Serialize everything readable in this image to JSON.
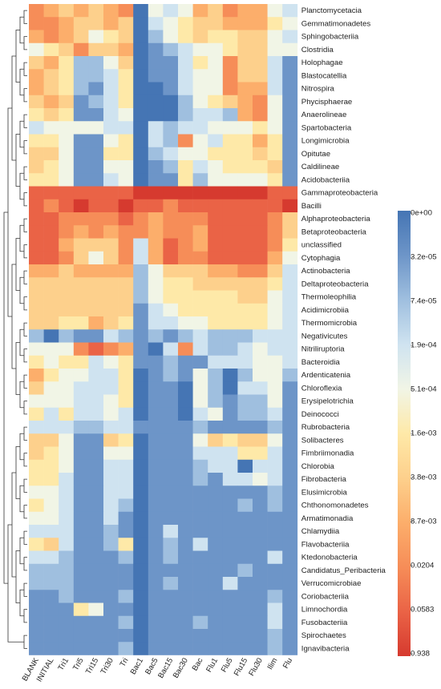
{
  "chart_data": {
    "type": "heatmap",
    "title": "",
    "xlabel": "",
    "ylabel": "",
    "columns": [
      "BLANK",
      "INITIAL",
      "Tri1",
      "Tri5",
      "Tri15",
      "Tri30",
      "Tri",
      "Bac1",
      "Bac5",
      "Bac15",
      "Bac30",
      "Bac",
      "Flu1",
      "Flu5",
      "Flu15",
      "Flu30",
      "Ilim",
      "Flu"
    ],
    "rows": [
      "Planctomycetacia",
      "Gemmatimonadetes",
      "Sphingobacteriia",
      "Clostridia",
      "Holophagae",
      "Blastocatellia",
      "Nitrospira",
      "Phycisphaerae",
      "Anaerolineae",
      "Spartobacteria",
      "Longimicrobia",
      "Opitutae",
      "Caldilineae",
      "Acidobacteriia",
      "Gammaproteobacteria",
      "Bacilli",
      "Alphaproteobacteria",
      "Betaproteobacteria",
      "unclassified",
      "Cytophagia",
      "Actinobacteria",
      "Deltaproteobacteria",
      "Thermoleophilia",
      "Acidimicrobiia",
      "Thermomicrobia",
      "Negativicutes",
      "Nitriliruptoria",
      "Bacteroidia",
      "Ardenticatenia",
      "Chloroflexia",
      "Erysipelotrichia",
      "Deinococci",
      "Rubrobacteria",
      "Solibacteres",
      "Fimbriimonadia",
      "Chlorobia",
      "Fibrobacteria",
      "Elusimicrobia",
      "Chthonomonadetes",
      "Armatimonadia",
      "Chlamydiia",
      "Flavobacteriia",
      "Ktedonobacteria",
      "Candidatus_Peribacteria",
      "Verrucomicrobiae",
      "Coriobacteriia",
      "Limnochordia",
      "Fusobacteriia",
      "Spirochaetes",
      "Ignavibacteria"
    ],
    "legend": {
      "position": "right",
      "ticks": [
        "0e+00",
        "3.2e-05",
        "7.4e-05",
        "1.9e-04",
        "5.1e-04",
        "1.6e-03",
        "3.8e-03",
        "8.7e-03",
        "0.0204",
        "0.0583",
        "0.938"
      ],
      "color_stops": [
        "#4575b4",
        "#6d95c8",
        "#9fbfdf",
        "#cfe3f0",
        "#f1f5e6",
        "#fee9a8",
        "#fdd08c",
        "#fcae6b",
        "#f68d58",
        "#ea6346",
        "#d63a2f"
      ]
    },
    "values": [
      [
        8,
        7,
        6,
        7,
        6,
        7,
        8,
        0,
        4,
        3,
        4,
        7,
        6,
        8,
        7,
        7,
        4,
        3
      ],
      [
        8,
        8,
        7,
        6,
        6,
        7,
        6,
        0,
        3,
        4,
        5,
        6,
        6,
        7,
        7,
        7,
        5,
        4
      ],
      [
        7,
        8,
        7,
        6,
        4,
        5,
        6,
        0,
        2,
        4,
        5,
        6,
        5,
        5,
        6,
        6,
        4,
        3
      ],
      [
        4,
        5,
        6,
        8,
        6,
        6,
        7,
        0,
        1,
        2,
        3,
        4,
        4,
        5,
        6,
        6,
        4,
        4
      ],
      [
        6,
        7,
        5,
        2,
        2,
        4,
        6,
        0,
        1,
        1,
        3,
        5,
        4,
        8,
        6,
        6,
        3,
        1
      ],
      [
        7,
        6,
        5,
        2,
        2,
        3,
        5,
        0,
        1,
        1,
        3,
        4,
        4,
        8,
        6,
        6,
        3,
        1
      ],
      [
        7,
        6,
        5,
        2,
        1,
        3,
        5,
        0,
        0,
        1,
        3,
        4,
        4,
        8,
        7,
        7,
        3,
        1
      ],
      [
        6,
        7,
        6,
        1,
        2,
        3,
        5,
        0,
        0,
        0,
        2,
        4,
        5,
        6,
        7,
        8,
        4,
        1
      ],
      [
        5,
        6,
        5,
        1,
        1,
        3,
        4,
        0,
        0,
        0,
        2,
        3,
        3,
        2,
        7,
        8,
        4,
        1
      ],
      [
        3,
        4,
        4,
        4,
        4,
        3,
        3,
        0,
        3,
        2,
        3,
        3,
        4,
        4,
        4,
        5,
        4,
        1
      ],
      [
        5,
        5,
        4,
        1,
        1,
        4,
        5,
        0,
        3,
        2,
        8,
        4,
        3,
        5,
        5,
        7,
        5,
        1
      ],
      [
        6,
        6,
        4,
        1,
        1,
        5,
        5,
        0,
        2,
        3,
        4,
        4,
        5,
        5,
        5,
        6,
        5,
        1
      ],
      [
        6,
        5,
        4,
        1,
        1,
        4,
        4,
        0,
        1,
        2,
        5,
        3,
        4,
        5,
        5,
        5,
        6,
        1
      ],
      [
        5,
        5,
        4,
        1,
        1,
        3,
        4,
        0,
        1,
        1,
        5,
        2,
        4,
        4,
        4,
        4,
        5,
        1
      ],
      [
        9,
        9,
        9,
        9,
        9,
        9,
        9,
        10,
        10,
        10,
        10,
        10,
        10,
        10,
        10,
        10,
        9,
        9
      ],
      [
        9,
        8,
        9,
        10,
        9,
        9,
        10,
        9,
        9,
        8,
        9,
        9,
        9,
        9,
        9,
        9,
        9,
        10
      ],
      [
        9,
        9,
        8,
        8,
        8,
        8,
        9,
        8,
        7,
        8,
        8,
        8,
        9,
        9,
        9,
        9,
        8,
        6
      ],
      [
        9,
        9,
        8,
        7,
        8,
        7,
        8,
        8,
        7,
        8,
        8,
        7,
        9,
        9,
        9,
        9,
        8,
        6
      ],
      [
        9,
        9,
        7,
        6,
        6,
        6,
        8,
        3,
        7,
        9,
        8,
        7,
        9,
        9,
        9,
        9,
        8,
        5
      ],
      [
        9,
        9,
        8,
        6,
        4,
        6,
        8,
        3,
        7,
        9,
        8,
        8,
        9,
        9,
        9,
        9,
        7,
        4
      ],
      [
        7,
        7,
        6,
        7,
        7,
        7,
        7,
        2,
        4,
        6,
        6,
        6,
        7,
        7,
        8,
        8,
        6,
        3
      ],
      [
        6,
        6,
        6,
        6,
        6,
        6,
        6,
        2,
        4,
        5,
        5,
        6,
        6,
        6,
        6,
        6,
        5,
        3
      ],
      [
        6,
        6,
        6,
        6,
        6,
        6,
        6,
        2,
        4,
        5,
        5,
        5,
        5,
        5,
        6,
        6,
        4,
        3
      ],
      [
        6,
        6,
        6,
        6,
        6,
        6,
        6,
        1,
        3,
        4,
        5,
        5,
        5,
        5,
        5,
        5,
        4,
        3
      ],
      [
        6,
        6,
        5,
        5,
        7,
        6,
        5,
        1,
        3,
        3,
        4,
        4,
        5,
        5,
        5,
        5,
        4,
        3
      ],
      [
        2,
        0,
        2,
        1,
        1,
        3,
        2,
        1,
        2,
        1,
        2,
        3,
        2,
        2,
        2,
        3,
        3,
        3
      ],
      [
        4,
        4,
        4,
        8,
        9,
        8,
        7,
        1,
        0,
        3,
        8,
        3,
        2,
        2,
        3,
        4,
        3,
        3
      ],
      [
        5,
        4,
        5,
        5,
        3,
        4,
        5,
        1,
        1,
        2,
        1,
        1,
        3,
        3,
        3,
        4,
        4,
        3
      ],
      [
        7,
        5,
        4,
        4,
        3,
        3,
        5,
        0,
        1,
        2,
        1,
        4,
        2,
        0,
        2,
        4,
        4,
        2
      ],
      [
        6,
        4,
        4,
        3,
        3,
        3,
        5,
        0,
        1,
        1,
        0,
        4,
        2,
        0,
        3,
        3,
        4,
        1
      ],
      [
        4,
        4,
        4,
        3,
        3,
        4,
        5,
        0,
        1,
        1,
        0,
        4,
        2,
        1,
        2,
        2,
        4,
        1
      ],
      [
        5,
        3,
        5,
        3,
        3,
        4,
        3,
        0,
        1,
        1,
        0,
        3,
        4,
        1,
        2,
        2,
        3,
        1
      ],
      [
        3,
        3,
        3,
        2,
        2,
        3,
        3,
        1,
        1,
        1,
        1,
        2,
        1,
        1,
        1,
        1,
        2,
        1
      ],
      [
        6,
        6,
        4,
        1,
        1,
        6,
        5,
        0,
        1,
        1,
        1,
        4,
        6,
        5,
        6,
        6,
        4,
        1
      ],
      [
        6,
        5,
        4,
        1,
        1,
        4,
        4,
        0,
        1,
        1,
        1,
        3,
        3,
        3,
        5,
        5,
        3,
        1
      ],
      [
        5,
        5,
        4,
        1,
        1,
        3,
        3,
        0,
        1,
        1,
        1,
        2,
        3,
        3,
        0,
        3,
        3,
        1
      ],
      [
        5,
        5,
        3,
        1,
        1,
        3,
        3,
        0,
        1,
        1,
        1,
        2,
        1,
        3,
        3,
        4,
        3,
        1
      ],
      [
        4,
        4,
        3,
        1,
        1,
        3,
        3,
        0,
        1,
        1,
        1,
        1,
        1,
        1,
        1,
        1,
        2,
        1
      ],
      [
        5,
        4,
        3,
        1,
        1,
        3,
        2,
        0,
        1,
        1,
        1,
        1,
        1,
        1,
        2,
        1,
        2,
        1
      ],
      [
        4,
        4,
        3,
        1,
        1,
        3,
        1,
        0,
        1,
        1,
        1,
        1,
        1,
        1,
        1,
        1,
        1,
        1
      ],
      [
        3,
        3,
        3,
        1,
        1,
        2,
        1,
        0,
        1,
        3,
        1,
        1,
        1,
        1,
        1,
        1,
        1,
        1
      ],
      [
        5,
        6,
        3,
        1,
        1,
        2,
        5,
        0,
        1,
        2,
        1,
        3,
        1,
        1,
        1,
        1,
        1,
        1
      ],
      [
        3,
        3,
        2,
        1,
        1,
        1,
        2,
        0,
        1,
        2,
        1,
        1,
        1,
        1,
        1,
        1,
        3,
        1
      ],
      [
        2,
        2,
        2,
        1,
        1,
        1,
        1,
        0,
        1,
        1,
        1,
        1,
        1,
        1,
        2,
        1,
        1,
        1
      ],
      [
        2,
        2,
        2,
        1,
        1,
        1,
        1,
        0,
        1,
        2,
        1,
        1,
        1,
        3,
        1,
        1,
        1,
        1
      ],
      [
        1,
        1,
        2,
        1,
        1,
        1,
        2,
        0,
        1,
        1,
        1,
        1,
        1,
        1,
        1,
        1,
        2,
        1
      ],
      [
        1,
        1,
        1,
        5,
        4,
        1,
        1,
        0,
        1,
        1,
        1,
        1,
        1,
        1,
        1,
        1,
        3,
        1
      ],
      [
        1,
        1,
        1,
        1,
        1,
        1,
        2,
        0,
        1,
        1,
        1,
        2,
        1,
        1,
        1,
        1,
        3,
        1
      ],
      [
        1,
        1,
        1,
        1,
        1,
        1,
        1,
        0,
        1,
        1,
        1,
        1,
        1,
        1,
        1,
        1,
        2,
        1
      ],
      [
        1,
        1,
        1,
        1,
        1,
        1,
        2,
        0,
        1,
        1,
        1,
        1,
        1,
        1,
        1,
        1,
        2,
        1
      ]
    ]
  }
}
